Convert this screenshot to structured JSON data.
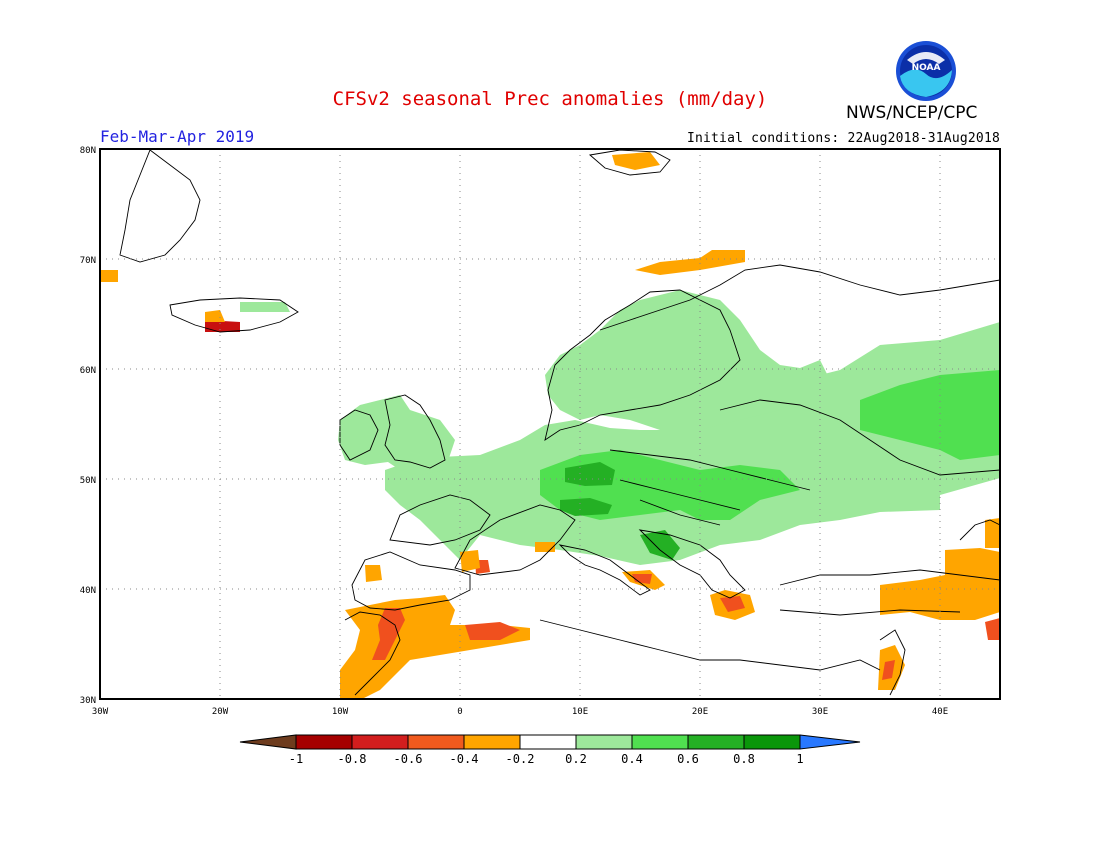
{
  "header": {
    "title": "CFSv2 seasonal Prec anomalies (mm/day)",
    "period": "Feb-Mar-Apr 2019",
    "initial_conditions": "Initial conditions: 22Aug2018-31Aug2018",
    "agency": "NWS/NCEP/CPC",
    "logo_text": "NOAA"
  },
  "map": {
    "lon_range": [
      -30,
      45
    ],
    "lat_range": [
      30,
      80
    ],
    "lon_ticks": [
      "30W",
      "20W",
      "10W",
      "0",
      "10E",
      "20E",
      "30E",
      "40E"
    ],
    "lat_ticks": [
      "80N",
      "70N",
      "60N",
      "50N",
      "40N",
      "30N"
    ],
    "gridlines": "dotted",
    "anomaly_regions": [
      {
        "name": "central-eastern-europe",
        "class": "0.2-0.4",
        "color": "#9de89b"
      },
      {
        "name": "scandinavia-baltic",
        "class": "0.2-0.4",
        "color": "#9de89b"
      },
      {
        "name": "western-russia",
        "class": "0.2-0.4",
        "color": "#9de89b"
      },
      {
        "name": "western-russia-core",
        "class": "0.4-0.6",
        "color": "#50e050"
      },
      {
        "name": "central-europe-core",
        "class": "0.4-0.6",
        "color": "#50e050"
      },
      {
        "name": "southern-germany",
        "class": "0.6-0.8",
        "color": "#24b024"
      },
      {
        "name": "morocco-algeria",
        "class": "-0.4--0.2",
        "color": "#ffa500"
      },
      {
        "name": "gibraltar",
        "class": "-0.6--0.4",
        "color": "#f0501e"
      },
      {
        "name": "greece",
        "class": "-0.4--0.2",
        "color": "#ffa500"
      },
      {
        "name": "turkey-east",
        "class": "-0.4--0.2",
        "color": "#ffa500"
      },
      {
        "name": "iceland-south",
        "class": "-0.8--0.6",
        "color": "#c81010"
      },
      {
        "name": "north-norway",
        "class": "-0.4--0.2",
        "color": "#ffa500"
      }
    ]
  },
  "colorbar": {
    "labels": [
      "-1",
      "-0.8",
      "-0.6",
      "-0.4",
      "-0.2",
      "0.2",
      "0.4",
      "0.6",
      "0.8",
      "1"
    ],
    "colors": [
      "#6e3c1e",
      "#a50000",
      "#d21e1e",
      "#f05a1e",
      "#ffa500",
      "#ffffff",
      "#9de89b",
      "#50e050",
      "#24b024",
      "#0a960a",
      "#2878ff"
    ]
  }
}
